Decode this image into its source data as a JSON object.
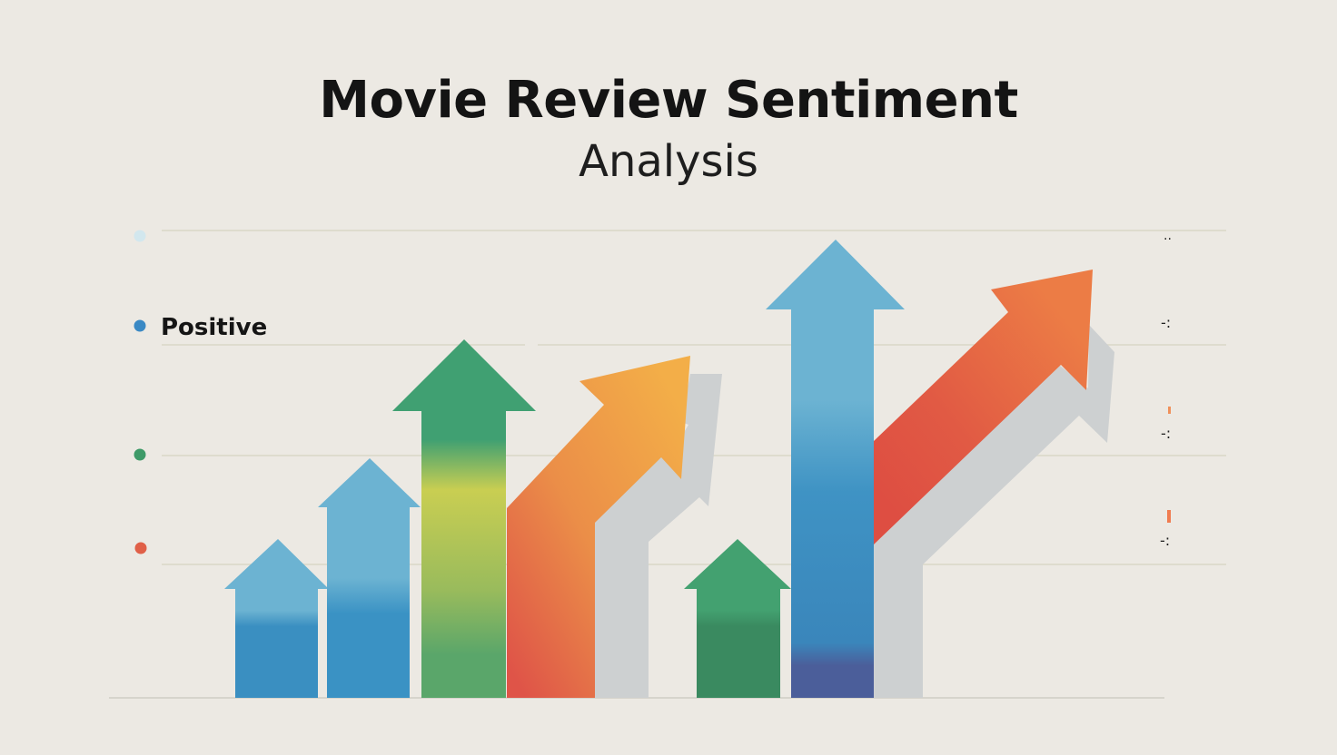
{
  "chart_data": {
    "type": "bar",
    "title": "Movie Review Sentiment",
    "subtitle": "Analysis",
    "legend": [
      {
        "label": "",
        "color": "#d2e7ee"
      },
      {
        "label": "Positive",
        "color": "#3a89c4"
      },
      {
        "label": "",
        "color": "#3e9a68"
      },
      {
        "label": "",
        "color": "#e06048"
      }
    ],
    "legend_position": "left",
    "gridlines": 4,
    "bars": [
      {
        "shape": "up-arrow",
        "value": 1.4,
        "colors": [
          "#6cb3d2",
          "#3a8fc1"
        ]
      },
      {
        "shape": "up-arrow",
        "value": 2.1,
        "colors": [
          "#6cb3d2",
          "#3a92c4"
        ]
      },
      {
        "shape": "up-arrow",
        "value": 3.2,
        "colors": [
          "#40a072",
          "#cbcf50",
          "#5ba56a"
        ]
      },
      {
        "shape": "diagonal-arrow",
        "value": 3.0,
        "colors": [
          "#f4b048",
          "#ea8c48",
          "#e0564a"
        ]
      },
      {
        "shape": "up-arrow",
        "value": 1.4,
        "colors": [
          "#42a06f",
          "#3a8a60"
        ]
      },
      {
        "shape": "up-arrow",
        "value": 4.1,
        "colors": [
          "#6cb3d2",
          "#3a8fc1",
          "#4a5e9a"
        ]
      },
      {
        "shape": "diagonal-arrow",
        "value": 3.8,
        "colors": [
          "#ea7c44",
          "#df4c40"
        ]
      }
    ]
  }
}
